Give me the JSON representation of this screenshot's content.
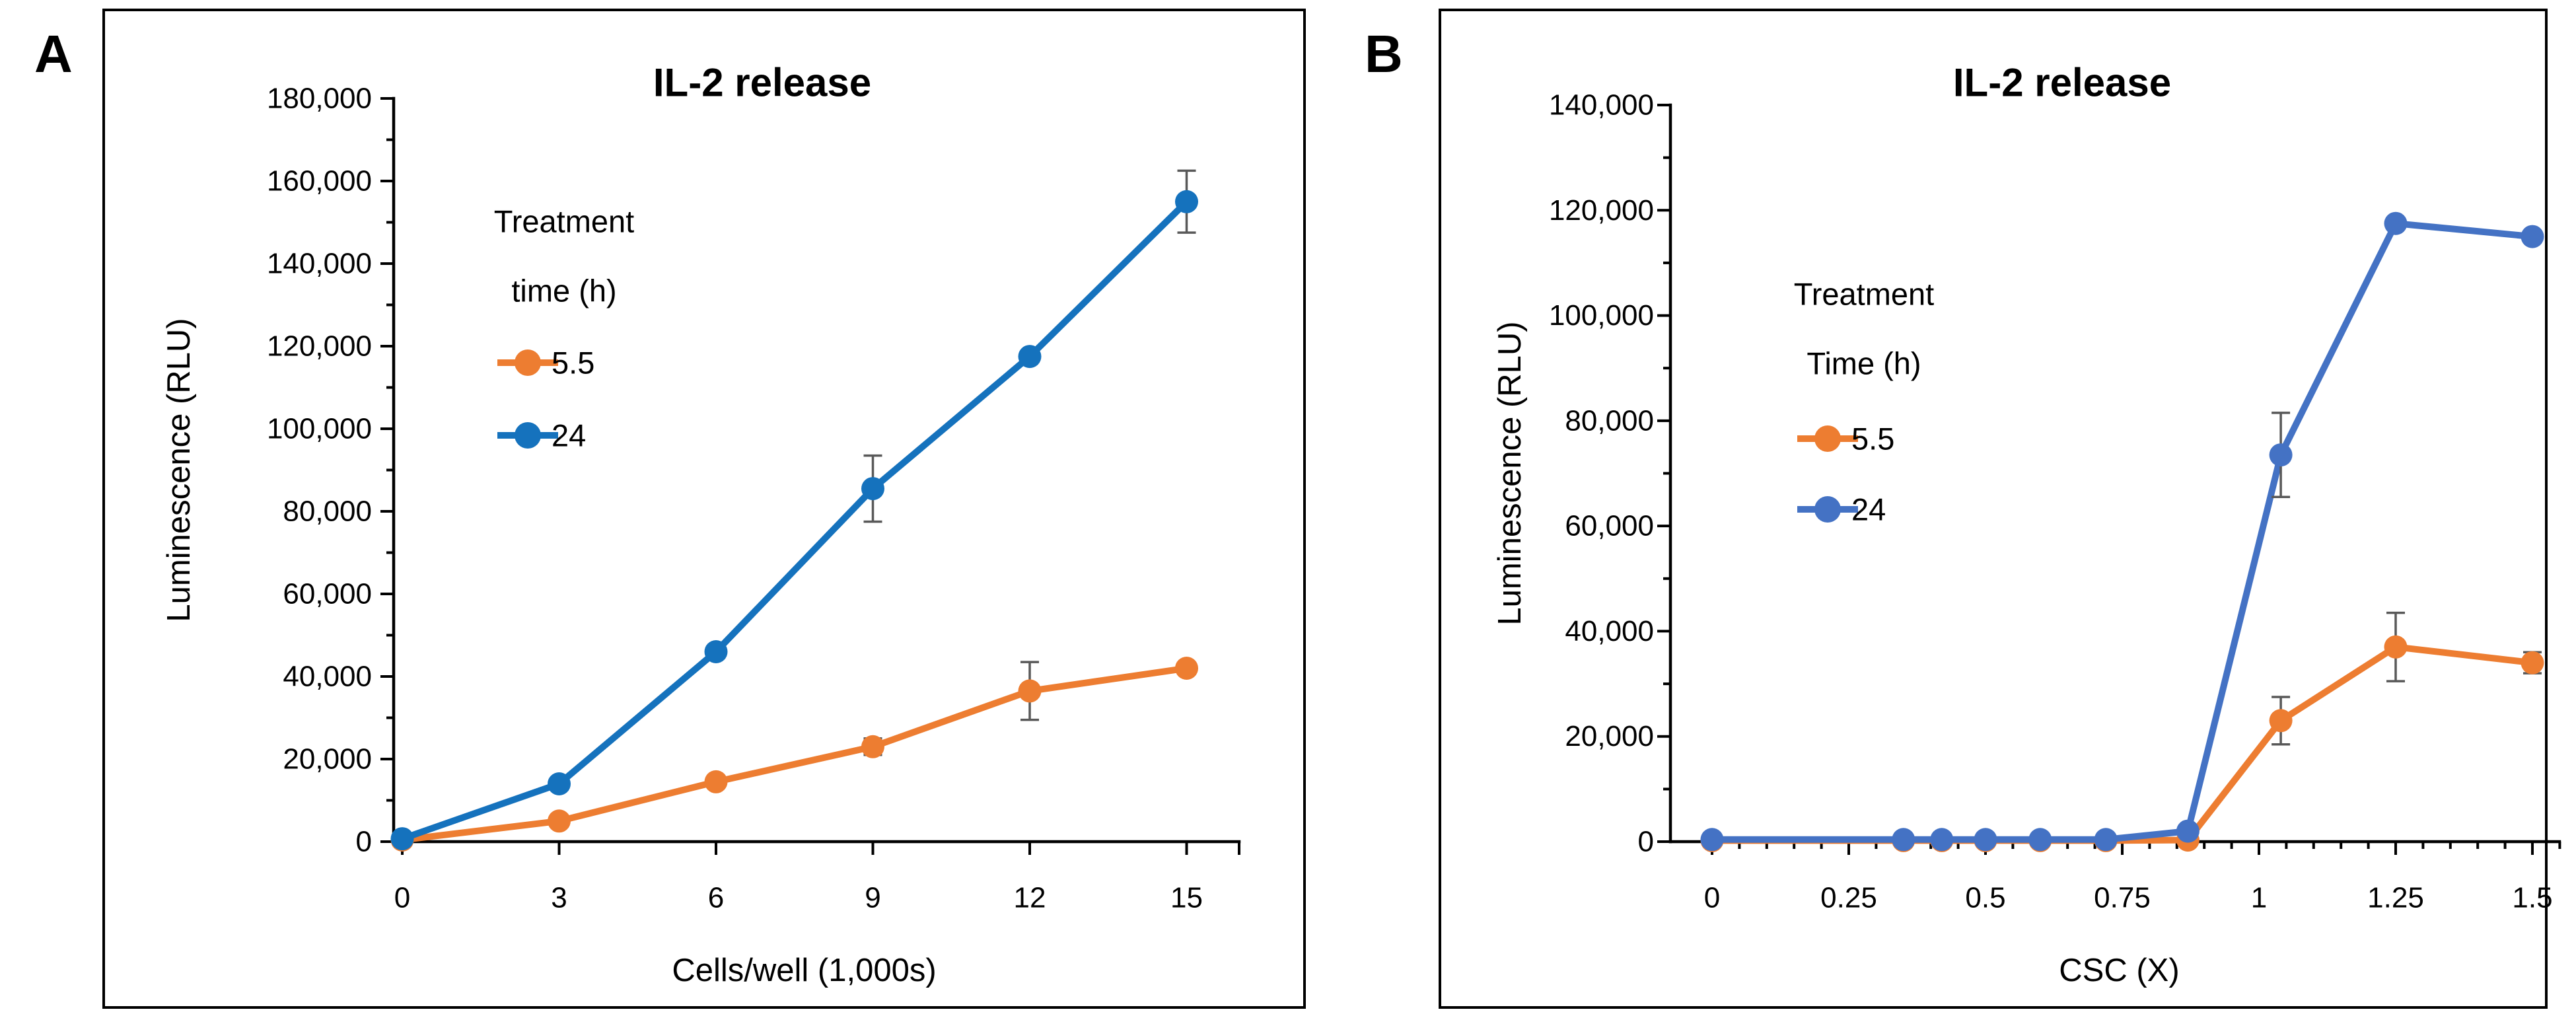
{
  "figure": {
    "background": "#FFFFFF",
    "border_color": "#000000",
    "error_bar_color": "#595959"
  },
  "chart_data": [
    {
      "type": "line",
      "panel_label": "A",
      "title": "IL-2 release",
      "xlabel": "Cells/well (1,000s)",
      "ylabel": "Luminescence (RLU)",
      "xlim": [
        0,
        16
      ],
      "ylim": [
        0,
        180000
      ],
      "grid": false,
      "x_ticks": [
        0,
        3,
        6,
        9,
        12,
        15
      ],
      "x_tick_labels": [
        "0",
        "3",
        "6",
        "9",
        "12",
        "15"
      ],
      "y_major": 20000,
      "y_minor": 10000,
      "y_tick_labels": [
        "0",
        "20,000",
        "40,000",
        "60,000",
        "80,000",
        "100,000",
        "120,000",
        "140,000",
        "160,000",
        "180,000"
      ],
      "legend": {
        "title_lines": [
          "Treatment",
          "time (h)"
        ],
        "position": "upper-left-inside"
      },
      "series": [
        {
          "name": "5.5",
          "color": "#ED7D31",
          "x": [
            0,
            3,
            6,
            9,
            12,
            15
          ],
          "y": [
            400,
            5000,
            14500,
            23000,
            36500,
            42000
          ],
          "yerr": [
            0,
            0,
            0,
            2000,
            7000,
            0
          ]
        },
        {
          "name": "24",
          "color": "#1572BD",
          "x": [
            0,
            3,
            6,
            9,
            12,
            15
          ],
          "y": [
            700,
            14000,
            46000,
            85500,
            117500,
            155000
          ],
          "yerr": [
            0,
            0,
            0,
            8000,
            0,
            7500
          ]
        }
      ]
    },
    {
      "type": "line",
      "panel_label": "B",
      "title": "IL-2 release",
      "xlabel": "CSC (X)",
      "ylabel": "Luminescence (RLU)",
      "xlim": [
        0,
        1.55
      ],
      "ylim": [
        0,
        140000
      ],
      "grid": false,
      "x_ticks": [
        0,
        0.25,
        0.5,
        0.75,
        1,
        1.25,
        1.5
      ],
      "x_tick_labels": [
        "0",
        "0.25",
        "0.5",
        "0.75",
        "1",
        "1.25",
        "1.5"
      ],
      "x_minor": 0.05,
      "y_major": 20000,
      "y_minor": 10000,
      "y_tick_labels": [
        "0",
        "20,000",
        "40,000",
        "60,000",
        "80,000",
        "100,000",
        "120,000",
        "140,000"
      ],
      "legend": {
        "title_lines": [
          "Treatment",
          "Time (h)"
        ],
        "position": "upper-left-inside"
      },
      "series": [
        {
          "name": "5.5",
          "color": "#ED7D31",
          "x": [
            0,
            0.35,
            0.42,
            0.5,
            0.6,
            0.72,
            0.87,
            1.04,
            1.25,
            1.5
          ],
          "y": [
            200,
            200,
            200,
            200,
            200,
            200,
            300,
            23000,
            37000,
            34000
          ],
          "yerr": [
            0,
            0,
            0,
            0,
            0,
            0,
            0,
            4500,
            6500,
            2000
          ]
        },
        {
          "name": "24",
          "color": "#4472C4",
          "x": [
            0,
            0.35,
            0.42,
            0.5,
            0.6,
            0.72,
            0.87,
            1.04,
            1.25,
            1.5
          ],
          "y": [
            400,
            400,
            400,
            400,
            400,
            400,
            2000,
            73500,
            117500,
            115000
          ],
          "yerr": [
            0,
            0,
            0,
            0,
            0,
            0,
            0,
            8000,
            0,
            0
          ]
        }
      ]
    }
  ]
}
